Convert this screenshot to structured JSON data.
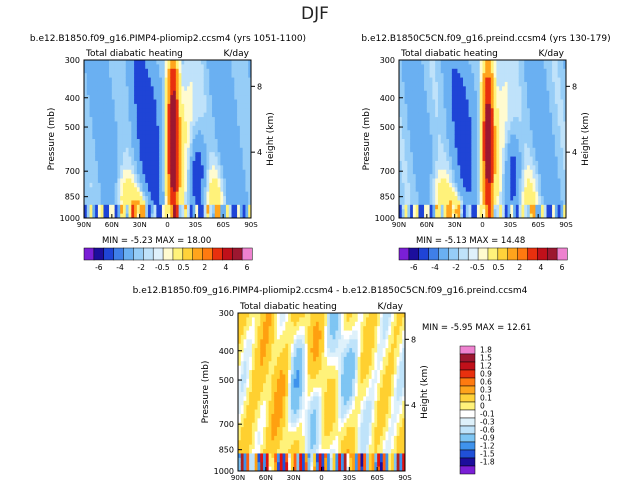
{
  "figure_title": "DJF",
  "colors": {
    "neg": [
      "#7a1fd6",
      "#1c0e9c",
      "#1f44d6",
      "#3f7fe8",
      "#6ab0f2",
      "#96cdf7",
      "#bfe2fa",
      "#dff1fc"
    ],
    "pos": [
      "#ffffff",
      "#fffbd0",
      "#fff27a",
      "#ffd23a",
      "#ffa41c",
      "#ff7a10",
      "#e8300e",
      "#c0101a",
      "#9c1730",
      "#ee82cf"
    ]
  },
  "chart_data": [
    {
      "type": "heatmap",
      "title": "b.e12.B1850.f09_g16.PIMP4-pliomip2.ccsm4  (yrs 1051-1100)",
      "subtitle": "Total diabatic heating",
      "units": "K/day",
      "ylabel": "Pressure (mb)",
      "ylabel_right": "Height (km)",
      "x_ticks": [
        "90N",
        "60N",
        "30N",
        "0",
        "30S",
        "60S",
        "90S"
      ],
      "x_range": [
        90,
        -90
      ],
      "y_ticks": [
        300,
        400,
        500,
        700,
        850,
        1000
      ],
      "y_range": [
        300,
        1000
      ],
      "height_ticks": [
        4,
        8
      ],
      "min_label": "MIN =",
      "min_value": "-5.23",
      "max_label": "MAX =",
      "max_value": "18.00",
      "colorbar_labels": [
        "-6",
        "-4",
        "-2",
        "-0.5",
        "0.5",
        "2",
        "4",
        "6"
      ]
    },
    {
      "type": "heatmap",
      "title": "b.e12.B1850C5CN.f09_g16.preind.ccsm4  (yrs 130-179)",
      "subtitle": "Total diabatic heating",
      "units": "K/day",
      "ylabel": "Pressure (mb)",
      "ylabel_right": "Height (km)",
      "x_ticks": [
        "90N",
        "60N",
        "30N",
        "0",
        "30S",
        "60S",
        "90S"
      ],
      "x_range": [
        90,
        -90
      ],
      "y_ticks": [
        300,
        400,
        500,
        700,
        850,
        1000
      ],
      "y_range": [
        300,
        1000
      ],
      "height_ticks": [
        4,
        8
      ],
      "min_label": "MIN =",
      "min_value": "-5.13",
      "max_label": "MAX =",
      "max_value": "14.48"
    },
    {
      "type": "heatmap",
      "title": "b.e12.B1850.f09_g16.PIMP4-pliomip2.ccsm4 - b.e12.B1850C5CN.f09_g16.preind.ccsm4",
      "subtitle": "Total diabatic heating",
      "units": "K/day",
      "ylabel": "Pressure (mb)",
      "ylabel_right": "Height (km)",
      "x_ticks": [
        "90N",
        "60N",
        "30N",
        "0",
        "30S",
        "60S",
        "90S"
      ],
      "x_range": [
        90,
        -90
      ],
      "y_ticks": [
        300,
        400,
        500,
        700,
        850,
        1000
      ],
      "y_range": [
        300,
        1000
      ],
      "height_ticks": [
        4,
        8
      ],
      "min_label": "MIN =",
      "min_value": "-5.95",
      "max_label": "MAX =",
      "max_value": "12.61",
      "colorbar_labels": [
        "1.8",
        "1.5",
        "1.2",
        "0.9",
        "0.6",
        "0.3",
        "0.1",
        "0",
        "-0.1",
        "-0.3",
        "-0.6",
        "-0.9",
        "-1.2",
        "-1.5",
        "-1.8"
      ]
    }
  ]
}
